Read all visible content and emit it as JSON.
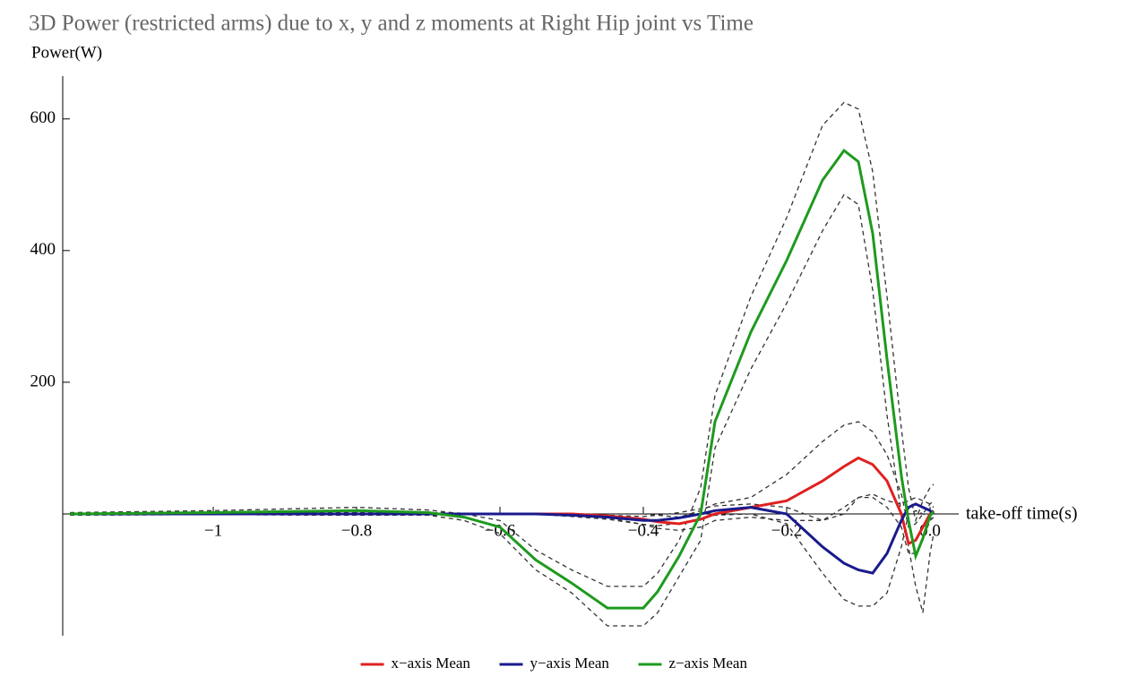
{
  "chart_data": {
    "type": "line",
    "title": "3D Power (restricted arms) due to x, y and z moments at Right Hip joint  vs Time",
    "y_label": "Power(W)",
    "x_label": "take-off time(s)",
    "x": [
      -1.2,
      -1.0,
      -0.8,
      -0.7,
      -0.65,
      -0.6,
      -0.55,
      -0.5,
      -0.45,
      -0.4,
      -0.38,
      -0.35,
      -0.32,
      -0.3,
      -0.25,
      -0.2,
      -0.15,
      -0.12,
      -0.1,
      -0.08,
      -0.06,
      -0.04,
      -0.03,
      -0.02,
      -0.01,
      0,
      0.005
    ],
    "series": [
      {
        "color": "#333333",
        "dashed": true,
        "values": [
          2,
          5,
          10,
          6,
          0,
          -10,
          -55,
          -85,
          -110,
          -110,
          -90,
          -40,
          40,
          180,
          330,
          450,
          590,
          625,
          615,
          520,
          330,
          130,
          40,
          -10,
          20,
          40,
          45
        ]
      },
      {
        "color": "#333333",
        "dashed": true,
        "values": [
          -2,
          -1,
          0,
          -2,
          -10,
          -30,
          -85,
          -120,
          -170,
          -170,
          -150,
          -95,
          -40,
          100,
          220,
          320,
          430,
          485,
          470,
          340,
          150,
          0,
          -50,
          -110,
          -150,
          -60,
          -30
        ]
      },
      {
        "color": "#333333",
        "dashed": true,
        "values": [
          0,
          1,
          2,
          2,
          1,
          0,
          0,
          0,
          0,
          0,
          -2,
          -5,
          5,
          15,
          25,
          60,
          110,
          135,
          140,
          125,
          90,
          30,
          -20,
          -15,
          0,
          15,
          20
        ]
      },
      {
        "color": "#333333",
        "dashed": true,
        "values": [
          0,
          -1,
          -2,
          -2,
          -1,
          0,
          0,
          0,
          -6,
          -16,
          -22,
          -25,
          -20,
          -10,
          -5,
          -10,
          -10,
          0,
          25,
          25,
          10,
          -20,
          -60,
          -60,
          -40,
          -10,
          -5
        ]
      },
      {
        "color": "#333333",
        "dashed": true,
        "values": [
          0,
          1,
          2,
          2,
          1,
          0,
          0,
          0,
          -2,
          -4,
          -2,
          2,
          8,
          12,
          15,
          10,
          -10,
          10,
          25,
          30,
          20,
          15,
          20,
          25,
          20,
          15,
          10
        ]
      },
      {
        "color": "#333333",
        "dashed": true,
        "values": [
          0,
          -1,
          -2,
          -2,
          -1,
          0,
          0,
          -4,
          -8,
          -16,
          -18,
          -14,
          -8,
          -2,
          0,
          -15,
          -90,
          -130,
          -140,
          -140,
          -120,
          -50,
          0,
          5,
          0,
          -5,
          -10
        ]
      },
      {
        "name": "x−axis Mean",
        "color": "#e02020",
        "values": [
          0,
          0,
          0,
          0,
          0,
          0,
          0,
          0,
          -3,
          -8,
          -12,
          -15,
          -8,
          0,
          10,
          20,
          50,
          72,
          85,
          75,
          50,
          0,
          -45,
          -40,
          -20,
          0,
          5
        ]
      },
      {
        "name": "y−axis Mean",
        "color": "#1a1a8c",
        "values": [
          0,
          0,
          0,
          0,
          0,
          0,
          0,
          -2,
          -5,
          -10,
          -10,
          -6,
          0,
          5,
          10,
          0,
          -50,
          -75,
          -85,
          -90,
          -60,
          -10,
          10,
          15,
          10,
          5,
          0
        ]
      },
      {
        "name": "z−axis Mean",
        "color": "#1e9a1e",
        "values": [
          0,
          2,
          5,
          2,
          -5,
          -20,
          -70,
          -105,
          -143,
          -143,
          -118,
          -64,
          0,
          140,
          276,
          385,
          507,
          552,
          535,
          426,
          235,
          58,
          -10,
          -64,
          -37,
          -3,
          4
        ]
      }
    ],
    "xlim": [
      -1.21,
      0.04
    ],
    "ylim": [
      -185,
      665
    ],
    "xticks": [
      {
        "value": -1,
        "label": "−1"
      },
      {
        "value": -0.8,
        "label": "−0.8"
      },
      {
        "value": -0.6,
        "label": "−0.6"
      },
      {
        "value": -0.4,
        "label": "−0.4"
      },
      {
        "value": -0.2,
        "label": "−0.2"
      },
      {
        "value": 0,
        "label": "0.0"
      }
    ],
    "yticks": [
      200,
      400,
      600
    ],
    "legend": "bottom"
  }
}
